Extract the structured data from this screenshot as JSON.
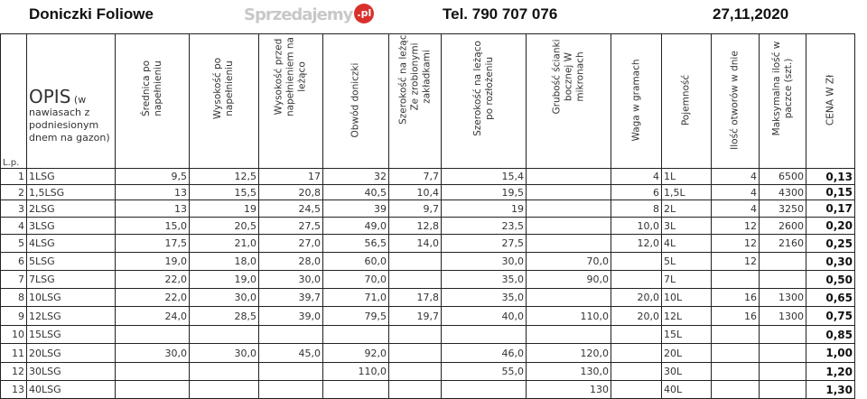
{
  "header": {
    "title": "Doniczki Foliowe",
    "phone": "Tel. 790 707 076",
    "date": "27,11,2020"
  },
  "columns": {
    "lp": "L.p.",
    "opis_big": "OPIS",
    "opis_small": " (w nawiasach z podniesionym dnem na gazon)",
    "rotated": [
      "Średnica po napełnieniu",
      "Wysokość po napełnieniu",
      "Wysokość przed napełnieniem na leżąco",
      "Obwód doniczki",
      "Szerokość na leżąco Ze zrobionymi zakładkami",
      "Szerokość na leżąco po rozłożeniu",
      "Grubość ścianki bocznej W mikronach",
      "Waga w gramach",
      "Pojemność",
      "Ilość otworów w dnie",
      "Maksymalna ilość w paczce (szt.)",
      "CENA W Zł"
    ]
  },
  "rows": [
    [
      "1",
      "1LSG",
      "9,5",
      "12,5",
      "17",
      "32",
      "7,7",
      "15,4",
      "",
      "4",
      "1L",
      "4",
      "6500",
      "0,13"
    ],
    [
      "2",
      "1,5LSG",
      "13",
      "15,5",
      "20,8",
      "40,5",
      "10,4",
      "19,5",
      "",
      "6",
      "1,5L",
      "4",
      "4300",
      "0,15"
    ],
    [
      "3",
      "2LSG",
      "13",
      "19",
      "24,5",
      "39",
      "9,7",
      "19",
      "",
      "8",
      "2L",
      "4",
      "3250",
      "0,17"
    ],
    [
      "4",
      "3LSG",
      "15,0",
      "20,5",
      "27,5",
      "49,0",
      "12,8",
      "23,5",
      "",
      "10,0",
      "3L",
      "12",
      "2600",
      "0,20"
    ],
    [
      "5",
      "4LSG",
      "17,5",
      "21,0",
      "27,0",
      "56,5",
      "14,0",
      "27,5",
      "",
      "12,0",
      "4L",
      "12",
      "2160",
      "0,25"
    ],
    [
      "6",
      "5LSG",
      "19,0",
      "18,0",
      "28,0",
      "60,0",
      "",
      "30,0",
      "70,0",
      "",
      "5L",
      "12",
      "",
      "0,30"
    ],
    [
      "7",
      "7LSG",
      "22,0",
      "19,0",
      "30,0",
      "70,0",
      "",
      "35,0",
      "90,0",
      "",
      "7L",
      "",
      "",
      "0,50"
    ],
    [
      "8",
      "10LSG",
      "22,0",
      "30,0",
      "39,7",
      "71,0",
      "17,8",
      "35,0",
      "",
      "20,0",
      "10L",
      "16",
      "1300",
      "0,65"
    ],
    [
      "9",
      "12LSG",
      "24,0",
      "28,5",
      "39,0",
      "79,5",
      "19,7",
      "40,0",
      "110,0",
      "20,0",
      "12L",
      "16",
      "1300",
      "0,75"
    ],
    [
      "10",
      "15LSG",
      "",
      "",
      "",
      "",
      "",
      "",
      "",
      "",
      "15L",
      "",
      "",
      "0,85"
    ],
    [
      "11",
      "20LSG",
      "30,0",
      "30,0",
      "45,0",
      "92,0",
      "",
      "46,0",
      "120,0",
      "",
      "20L",
      "",
      "",
      "1,00"
    ],
    [
      "12",
      "30LSG",
      "",
      "",
      "",
      "110,0",
      "",
      "55,0",
      "130,0",
      "",
      "30L",
      "",
      "",
      "1,20"
    ],
    [
      "13",
      "40LSG",
      "",
      "",
      "",
      "",
      "",
      "",
      "130",
      "",
      "40L",
      "",
      "",
      "1,30"
    ]
  ],
  "watermark": {
    "text": "Sprzedajemy",
    "badge": ".pl",
    "badge_color": "#d9302c"
  }
}
